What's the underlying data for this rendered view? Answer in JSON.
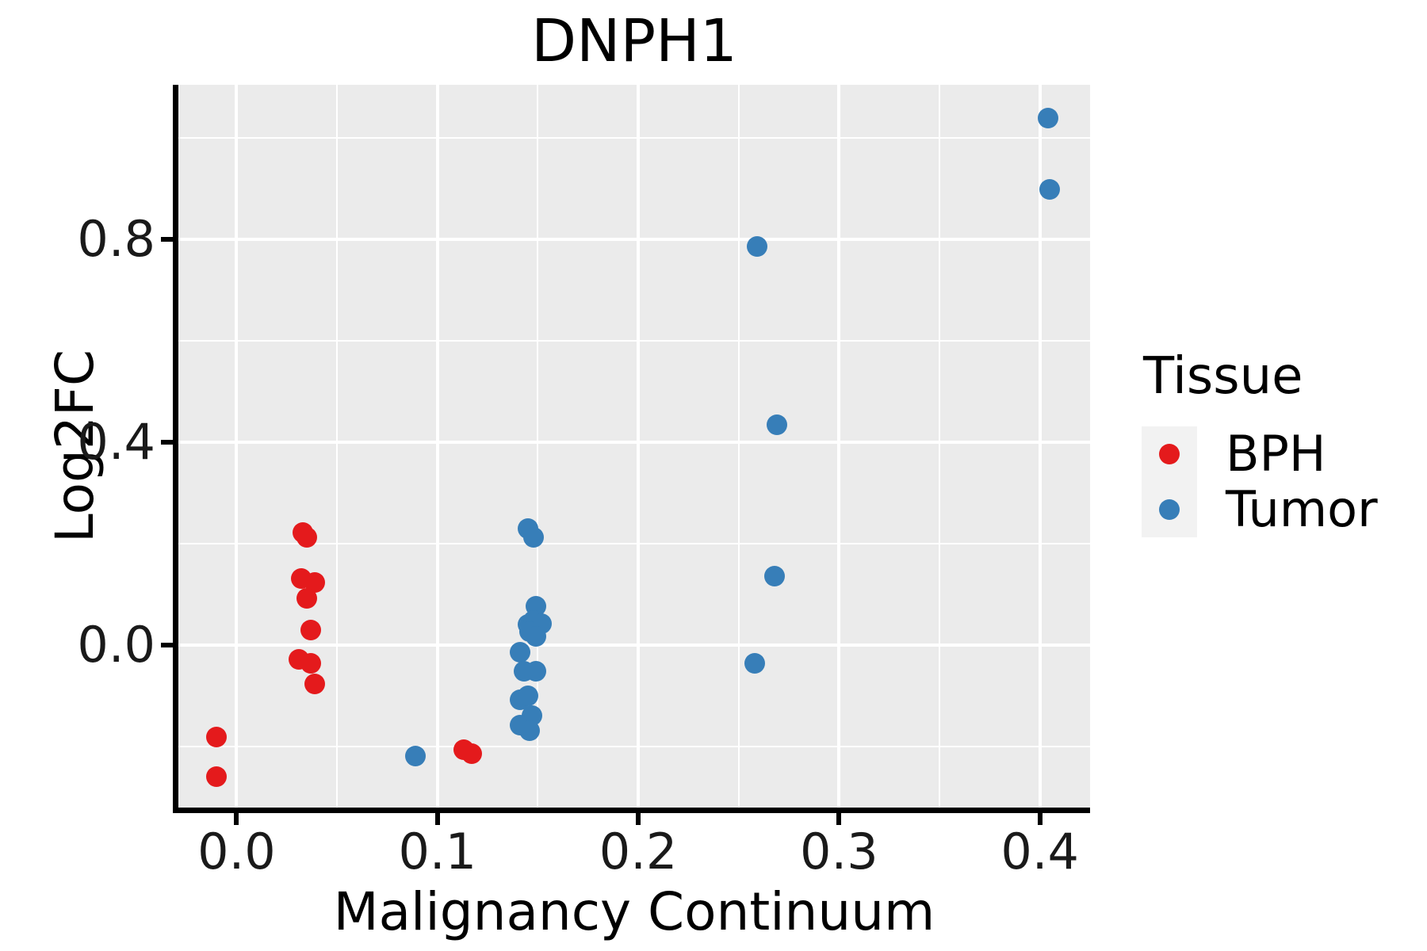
{
  "chart_data": {
    "type": "scatter",
    "title": "DNPH1",
    "xlabel": "Malignancy Continuum",
    "ylabel": "Log2FC",
    "xlim": [
      -0.029,
      0.425
    ],
    "ylim": [
      -0.32,
      1.105
    ],
    "x_ticks": [
      0.0,
      0.1,
      0.2,
      0.3,
      0.4
    ],
    "x_tick_labels": [
      "0.0",
      "0.1",
      "0.2",
      "0.3",
      "0.4"
    ],
    "y_ticks": [
      0.0,
      0.4,
      0.8
    ],
    "y_tick_labels": [
      "0.0",
      "0.4",
      "0.8"
    ],
    "x_minor_gridlines": [
      0.05,
      0.15,
      0.25,
      0.35
    ],
    "y_minor_gridlines": [
      -0.2,
      0.2,
      0.6,
      1.0
    ],
    "grid": "on",
    "panel_background": "#EBEBEB",
    "gridline_color": "#FFFFFF",
    "legend_position": "right",
    "legend": {
      "title": "Tissue"
    },
    "series": [
      {
        "name": "BPH",
        "color": "#E41A1C",
        "points": [
          [
            -0.01,
            -0.181
          ],
          [
            -0.01,
            -0.259
          ],
          [
            0.033,
            0.222
          ],
          [
            0.035,
            0.213
          ],
          [
            0.032,
            0.131
          ],
          [
            0.039,
            0.123
          ],
          [
            0.035,
            0.092
          ],
          [
            0.037,
            0.03
          ],
          [
            0.031,
            -0.028
          ],
          [
            0.037,
            -0.036
          ],
          [
            0.039,
            -0.077
          ],
          [
            0.113,
            -0.206
          ],
          [
            0.117,
            -0.214
          ]
        ]
      },
      {
        "name": "Tumor",
        "color": "#377EB8",
        "points": [
          [
            0.089,
            -0.219
          ],
          [
            0.145,
            0.23
          ],
          [
            0.148,
            0.213
          ],
          [
            0.149,
            0.077
          ],
          [
            0.145,
            0.041
          ],
          [
            0.148,
            0.048
          ],
          [
            0.152,
            0.042
          ],
          [
            0.146,
            0.027
          ],
          [
            0.149,
            0.017
          ],
          [
            0.141,
            -0.014
          ],
          [
            0.143,
            -0.052
          ],
          [
            0.149,
            -0.052
          ],
          [
            0.141,
            -0.108
          ],
          [
            0.145,
            -0.1
          ],
          [
            0.147,
            -0.139
          ],
          [
            0.141,
            -0.158
          ],
          [
            0.146,
            -0.168
          ],
          [
            0.259,
            0.786
          ],
          [
            0.269,
            0.434
          ],
          [
            0.268,
            0.136
          ],
          [
            0.258,
            -0.035
          ],
          [
            0.404,
            1.039
          ],
          [
            0.405,
            0.898
          ]
        ]
      }
    ]
  }
}
